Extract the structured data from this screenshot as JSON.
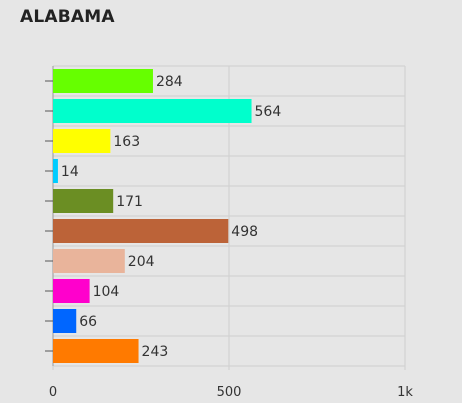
{
  "chart_data": {
    "type": "bar",
    "orientation": "horizontal",
    "title": "ALABAMA",
    "xlabel": "",
    "ylabel": "",
    "xlim": [
      0,
      1000
    ],
    "x_ticks": [
      {
        "value": 0,
        "label": "0"
      },
      {
        "value": 500,
        "label": "500"
      },
      {
        "value": 1000,
        "label": "1k"
      }
    ],
    "grid": true,
    "legend": "none",
    "category_labels_shown": false,
    "bars": [
      {
        "value": 284,
        "label": "284",
        "color": "#66ff00"
      },
      {
        "value": 564,
        "label": "564",
        "color": "#00ffcc"
      },
      {
        "value": 163,
        "label": "163",
        "color": "#ffff00"
      },
      {
        "value": 14,
        "label": "14",
        "color": "#00ccff"
      },
      {
        "value": 171,
        "label": "171",
        "color": "#6b8e23"
      },
      {
        "value": 498,
        "label": "498",
        "color": "#bc6338"
      },
      {
        "value": 204,
        "label": "204",
        "color": "#e9b49b"
      },
      {
        "value": 104,
        "label": "104",
        "color": "#ff00cc"
      },
      {
        "value": 66,
        "label": "66",
        "color": "#0066ff"
      },
      {
        "value": 243,
        "label": "243",
        "color": "#ff7a00"
      }
    ]
  }
}
